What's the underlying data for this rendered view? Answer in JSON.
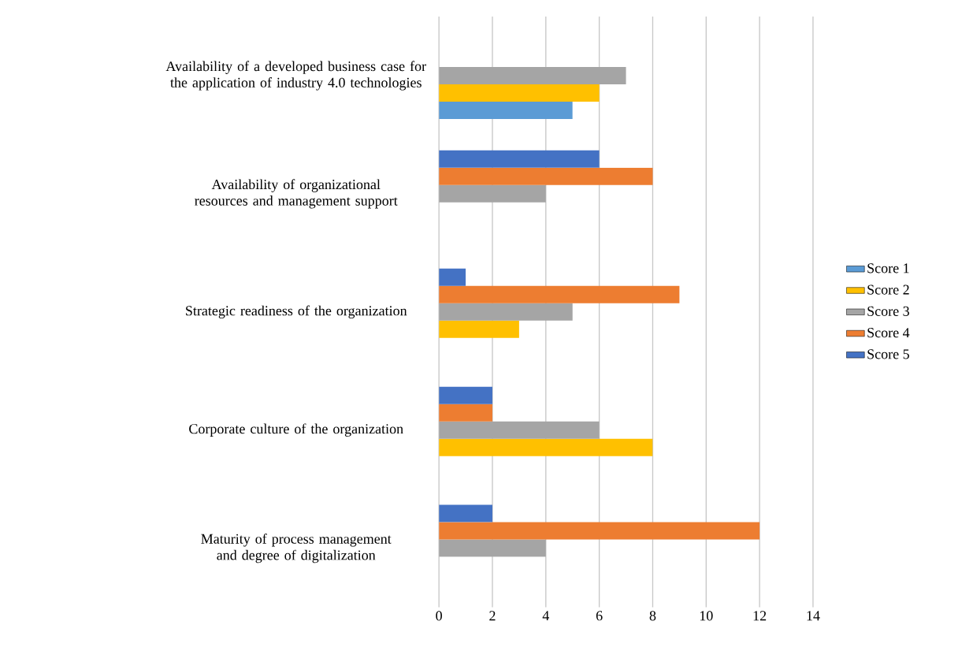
{
  "chart_data": {
    "type": "bar",
    "orientation": "horizontal",
    "categories": [
      "Availability of a developed business case for the application of industry 4.0 technologies",
      "Availability of organizational resources and management support",
      "Strategic readiness of the organization",
      "Corporate culture of the organization",
      "Maturity of process management and degree of digitalization"
    ],
    "series": [
      {
        "name": "Score 1",
        "color": "#5b9bd5",
        "values": [
          5,
          null,
          null,
          null,
          null
        ]
      },
      {
        "name": "Score 2",
        "color": "#ffc000",
        "values": [
          6,
          null,
          3,
          8,
          null
        ]
      },
      {
        "name": "Score 3",
        "color": "#a5a5a5",
        "values": [
          7,
          4,
          5,
          6,
          4
        ]
      },
      {
        "name": "Score 4",
        "color": "#ed7d31",
        "values": [
          null,
          8,
          9,
          2,
          12
        ]
      },
      {
        "name": "Score 5",
        "color": "#4472c4",
        "values": [
          null,
          6,
          1,
          2,
          2
        ]
      }
    ],
    "xlim": [
      0,
      14
    ],
    "xticks": [
      0,
      2,
      4,
      6,
      8,
      10,
      12,
      14
    ],
    "grid": "x",
    "legend": "right"
  }
}
